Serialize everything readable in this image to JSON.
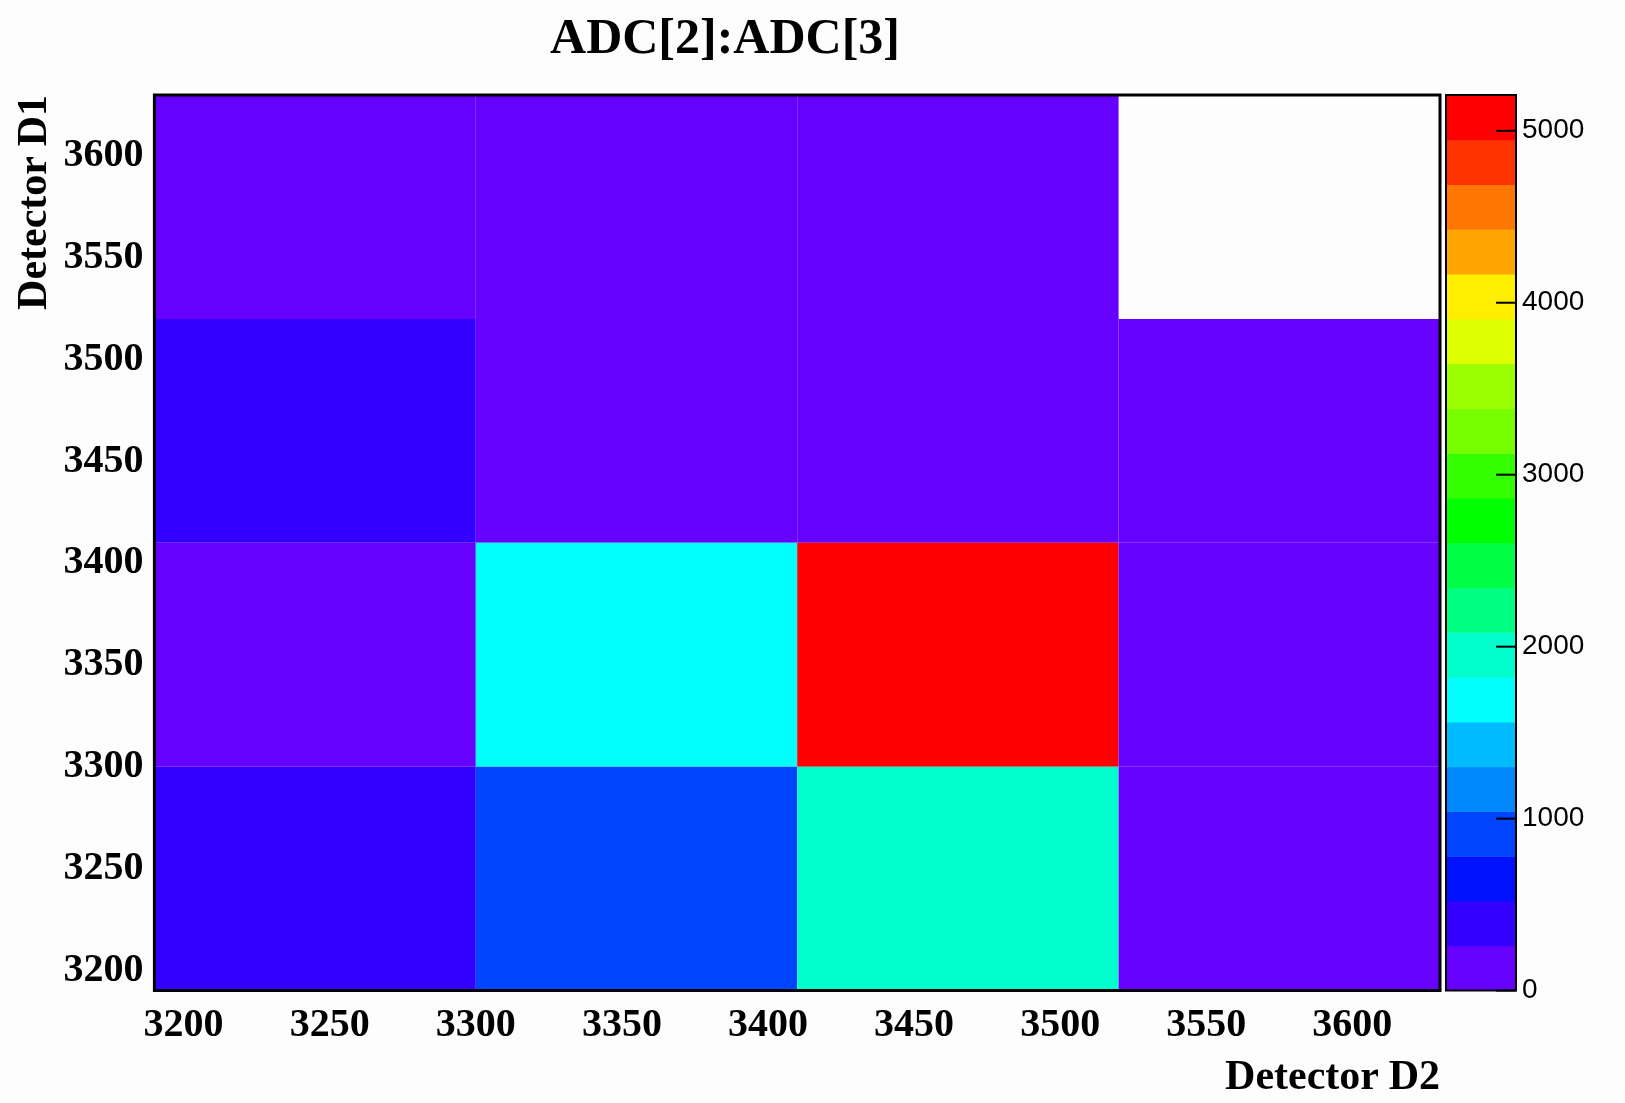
{
  "chart_data": {
    "type": "heatmap",
    "title": "ADC[2]:ADC[3]",
    "xlabel": "Detector D2",
    "ylabel": "Detector D1",
    "xlim": [
      3190,
      3630
    ],
    "ylim": [
      3190,
      3630
    ],
    "xticks": [
      3200,
      3250,
      3300,
      3350,
      3400,
      3450,
      3500,
      3550,
      3600
    ],
    "yticks": [
      3200,
      3250,
      3300,
      3350,
      3400,
      3450,
      3500,
      3550,
      3600
    ],
    "cells": [
      [
        100,
        100,
        100,
        null
      ],
      [
        400,
        100,
        100,
        100
      ],
      [
        100,
        1700,
        5200,
        100
      ],
      [
        400,
        900,
        1950,
        100
      ]
    ],
    "clim": [
      0,
      5208
    ],
    "cticks": [
      0,
      1000,
      2000,
      3000,
      4000,
      5000
    ],
    "grid": false,
    "legend": false
  }
}
